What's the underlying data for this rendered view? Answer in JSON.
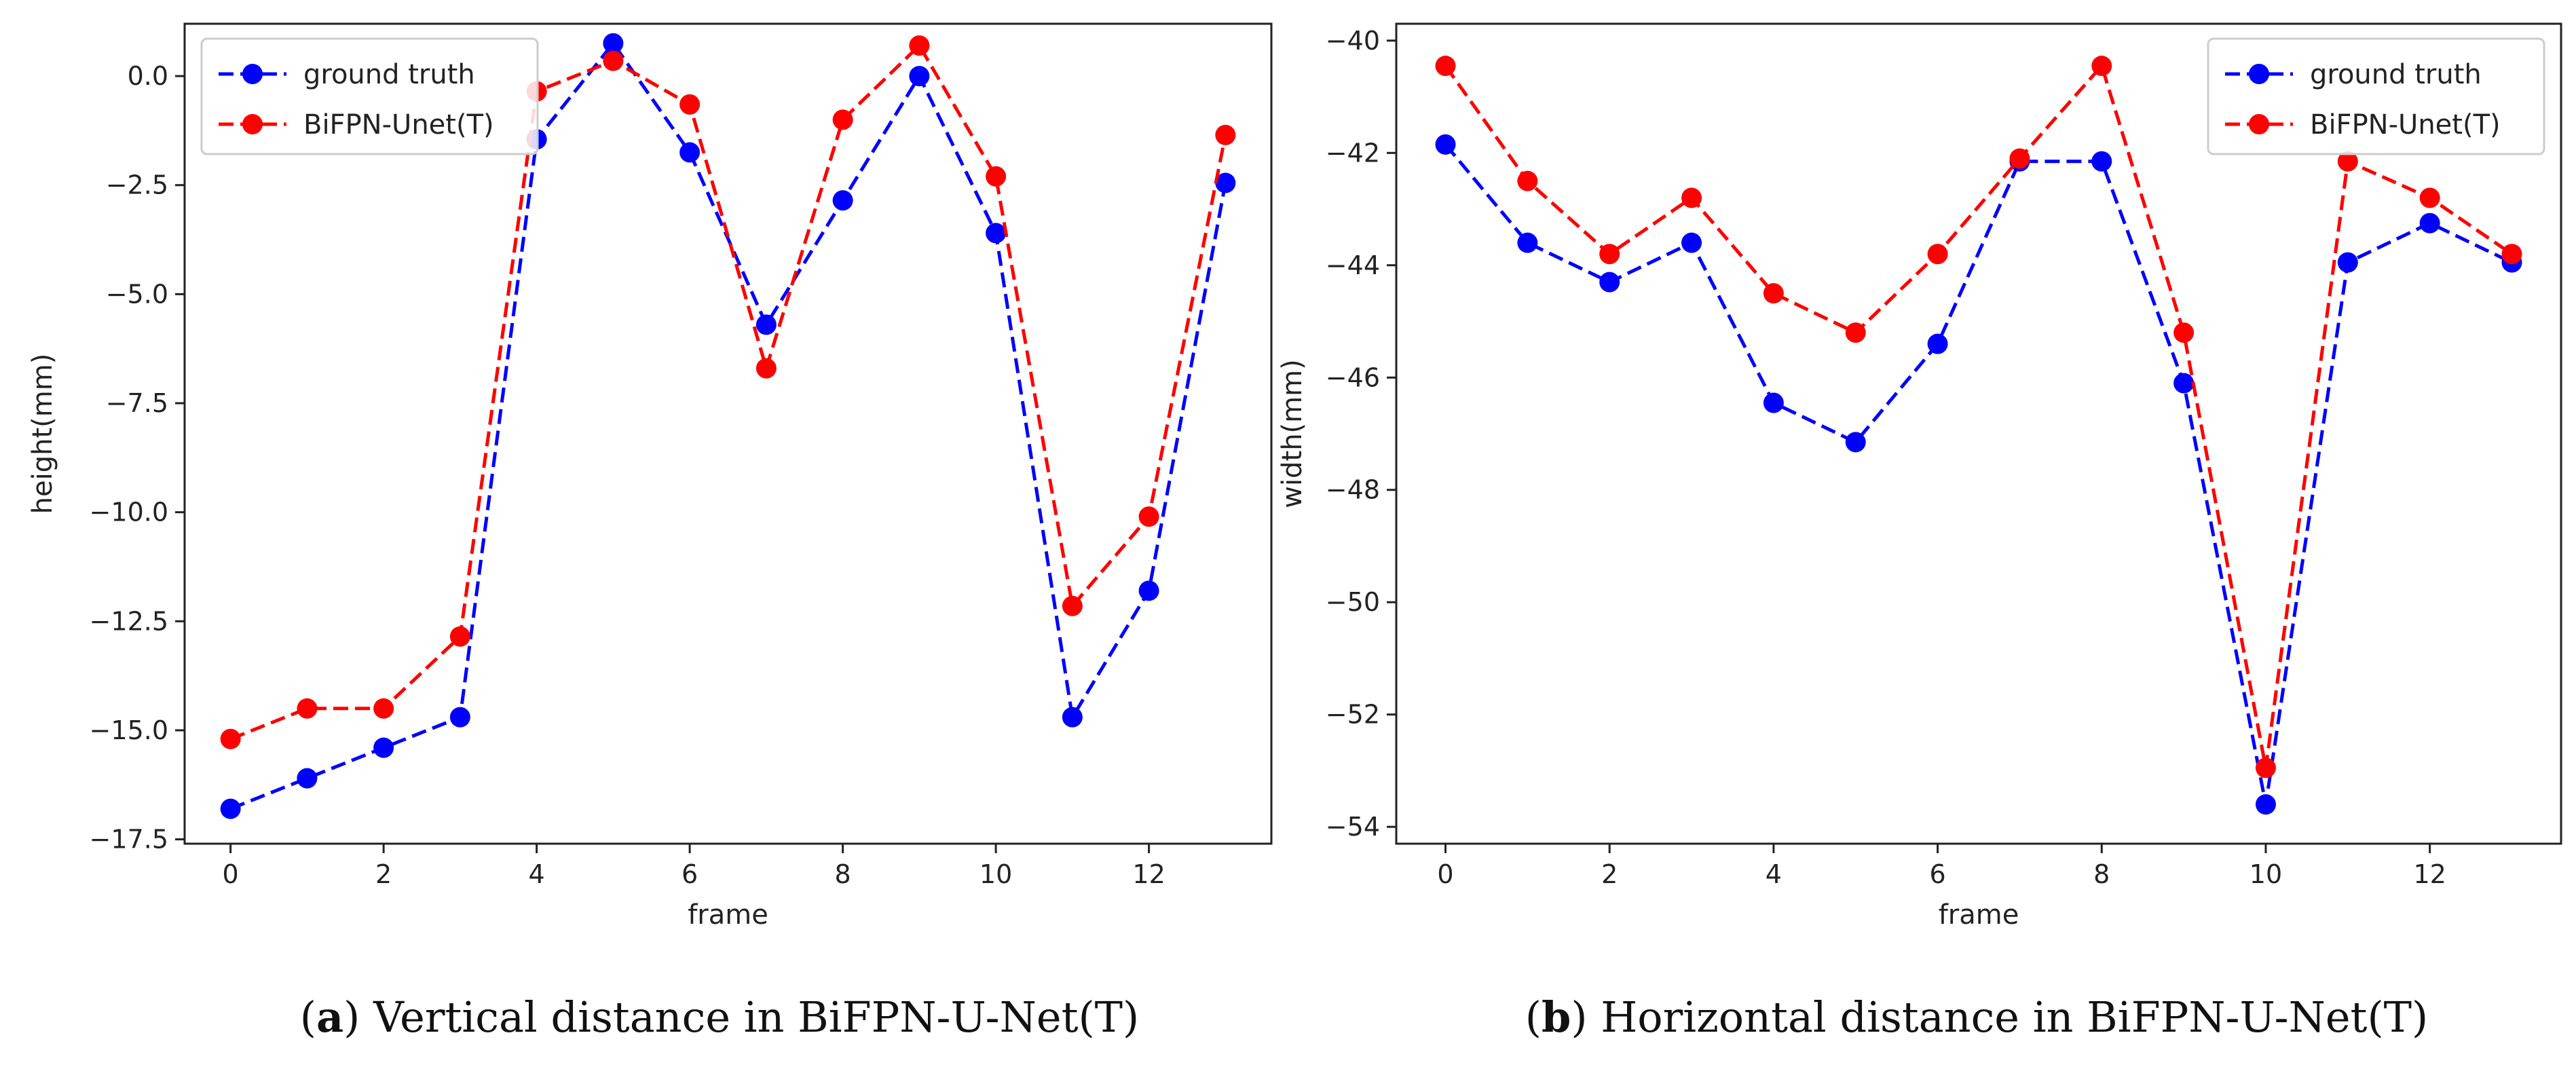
{
  "chart_data": [
    {
      "type": "line",
      "caption_letter": "a",
      "caption_text": "Vertical distance in BiFPN-U-Net(T)",
      "xlabel": "frame",
      "ylabel": "height(mm)",
      "xlim": [
        -0.6,
        13.6
      ],
      "ylim": [
        -17.6,
        1.2
      ],
      "xticks": [
        0,
        2,
        4,
        6,
        8,
        10,
        12
      ],
      "yticks": [
        -17.5,
        -15.0,
        -12.5,
        -10.0,
        -7.5,
        -5.0,
        -2.5,
        0.0
      ],
      "ytick_labels": [
        "−17.5",
        "−15.0",
        "−12.5",
        "−10.0",
        "−7.5",
        "−5.0",
        "−2.5",
        "0.0"
      ],
      "legend_position": "top-left",
      "x": [
        0,
        1,
        2,
        3,
        4,
        5,
        6,
        7,
        8,
        9,
        10,
        11,
        12,
        13
      ],
      "series": [
        {
          "name": "ground truth",
          "color": "#0000ff",
          "values": [
            -16.8,
            -16.1,
            -15.4,
            -14.7,
            -1.45,
            0.75,
            -1.75,
            -5.7,
            -2.85,
            0.0,
            -3.6,
            -14.7,
            -11.8,
            -2.45
          ]
        },
        {
          "name": "BiFPN-Unet(T)",
          "color": "#ff0000",
          "values": [
            -15.2,
            -14.5,
            -14.5,
            -12.85,
            -0.35,
            0.35,
            -0.65,
            -6.7,
            -1.0,
            0.7,
            -2.3,
            -12.15,
            -10.1,
            -1.35
          ]
        }
      ]
    },
    {
      "type": "line",
      "caption_letter": "b",
      "caption_text": "Horizontal distance in BiFPN-U-Net(T)",
      "xlabel": "frame",
      "ylabel": "width(mm)",
      "xlim": [
        -0.6,
        13.6
      ],
      "ylim": [
        -54.3,
        -39.7
      ],
      "xticks": [
        0,
        2,
        4,
        6,
        8,
        10,
        12
      ],
      "yticks": [
        -54,
        -52,
        -50,
        -48,
        -46,
        -44,
        -42,
        -40
      ],
      "ytick_labels": [
        "−54",
        "−52",
        "−50",
        "−48",
        "−46",
        "−44",
        "−42",
        "−40"
      ],
      "legend_position": "top-right",
      "x": [
        0,
        1,
        2,
        3,
        4,
        5,
        6,
        7,
        8,
        9,
        10,
        11,
        12,
        13
      ],
      "series": [
        {
          "name": "ground truth",
          "color": "#0000ff",
          "values": [
            -41.85,
            -43.6,
            -44.3,
            -43.6,
            -46.45,
            -47.15,
            -45.4,
            -42.15,
            -42.15,
            -46.1,
            -53.6,
            -43.95,
            -43.25,
            -43.95
          ]
        },
        {
          "name": "BiFPN-Unet(T)",
          "color": "#ff0000",
          "values": [
            -40.45,
            -42.5,
            -43.8,
            -42.8,
            -44.5,
            -45.2,
            -43.8,
            -42.1,
            -40.45,
            -45.2,
            -52.95,
            -42.15,
            -42.8,
            -43.8
          ]
        }
      ]
    }
  ]
}
